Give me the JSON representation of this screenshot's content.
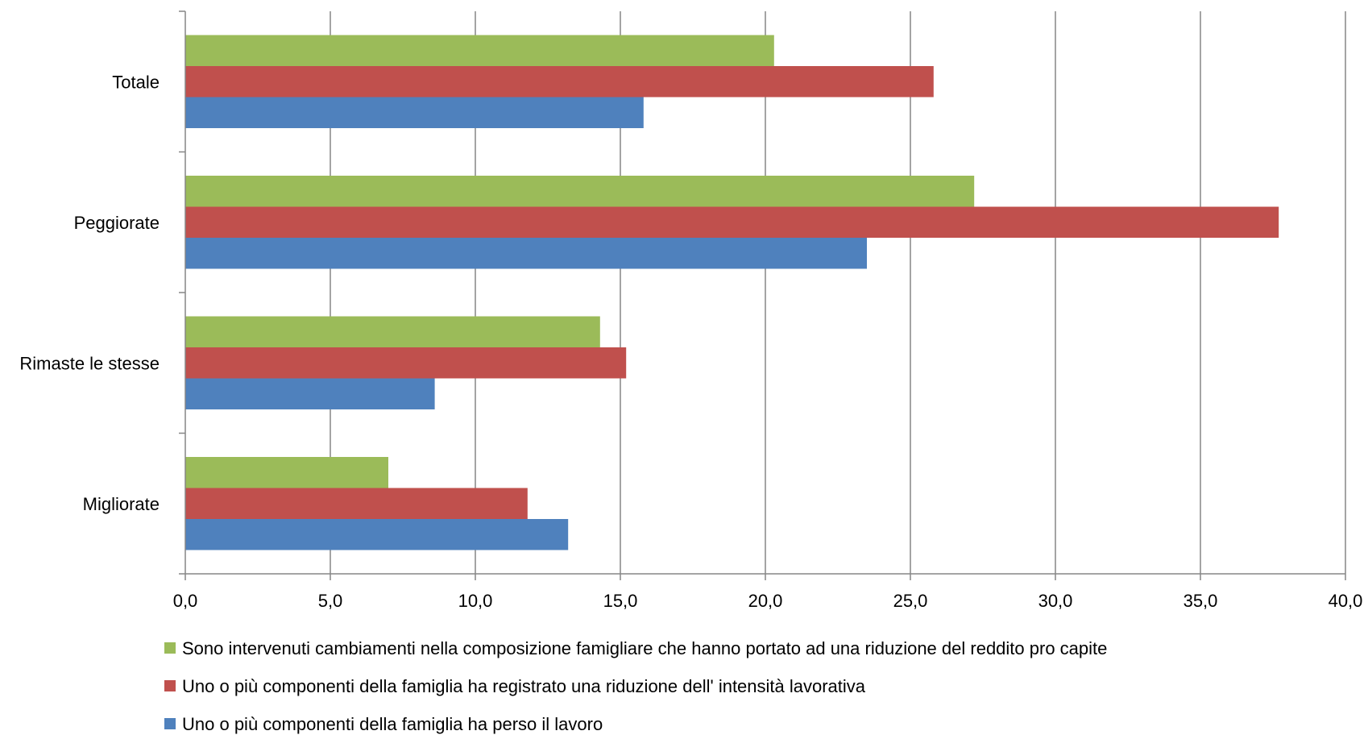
{
  "chart_data": {
    "type": "bar",
    "orientation": "horizontal",
    "categories": [
      "Totale",
      "Peggiorate",
      "Rimaste le stesse",
      "Migliorate"
    ],
    "series": [
      {
        "name": "Sono intervenuti cambiamenti nella composizione famigliare che hanno portato ad una riduzione del reddito pro capite",
        "color": "#9BBB59",
        "values": [
          20.3,
          27.2,
          14.3,
          7.0
        ]
      },
      {
        "name": "Uno o più componenti della famiglia ha registrato una riduzione dell' intensità lavorativa",
        "color": "#C0504D",
        "values": [
          25.8,
          37.7,
          15.2,
          11.8
        ]
      },
      {
        "name": "Uno o più componenti della famiglia ha perso il lavoro",
        "color": "#4F81BD",
        "values": [
          15.8,
          23.5,
          8.6,
          13.2
        ]
      }
    ],
    "xlim": [
      0,
      40
    ],
    "xticks": [
      "0,0",
      "5,0",
      "10,0",
      "15,0",
      "20,0",
      "25,0",
      "30,0",
      "35,0",
      "40,0"
    ],
    "xtick_values": [
      0,
      5,
      10,
      15,
      20,
      25,
      30,
      35,
      40
    ],
    "grid": "vertical",
    "legend_position": "bottom"
  }
}
